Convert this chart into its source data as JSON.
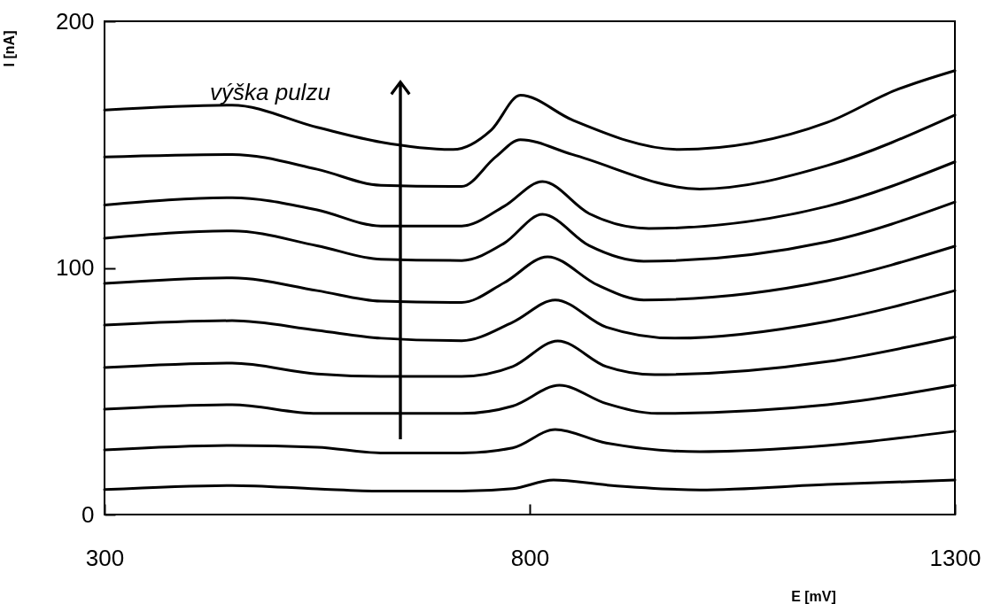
{
  "chart_data": {
    "type": "line",
    "xlabel": "E [mV]",
    "ylabel": "I [nA]",
    "xlim": [
      300,
      1300
    ],
    "xticks": [
      300,
      800,
      1300
    ],
    "ylim": [
      0,
      200
    ],
    "yticks": [
      0,
      100,
      200
    ],
    "grid": false,
    "legend": false,
    "marker": "none",
    "line_style": "solid",
    "annotations": [
      "výška pulzu"
    ],
    "series": [
      {
        "color": "#000000",
        "x": [
          300,
          450,
          550,
          625,
          710,
          755,
          789,
          850,
          976,
          1150,
          1230,
          1300
        ],
        "values": [
          164,
          166,
          157,
          151,
          148,
          156,
          170,
          160,
          148,
          159,
          172,
          180
        ]
      },
      {
        "color": "#000000",
        "x": [
          300,
          450,
          550,
          625,
          720,
          760,
          789,
          850,
          1000,
          1150,
          1300
        ],
        "values": [
          145,
          146,
          140,
          133.5,
          133,
          145,
          152,
          146,
          132,
          141.5,
          162
        ]
      },
      {
        "color": "#000000",
        "x": [
          300,
          450,
          550,
          625,
          720,
          770,
          815,
          870,
          940,
          1150,
          1300
        ],
        "values": [
          125.5,
          128.5,
          123.5,
          117,
          117,
          125,
          135,
          122,
          116,
          125,
          143
        ]
      },
      {
        "color": "#000000",
        "x": [
          300,
          450,
          550,
          625,
          720,
          770,
          815,
          870,
          934,
          1150,
          1300
        ],
        "values": [
          112,
          115,
          109,
          103.5,
          103,
          110,
          121.7,
          109,
          102.7,
          110.6,
          126.7
        ]
      },
      {
        "color": "#000000",
        "x": [
          300,
          450,
          550,
          625,
          720,
          770,
          821,
          880,
          934,
          1150,
          1300
        ],
        "values": [
          93.7,
          96,
          90.8,
          86.5,
          86,
          94,
          104.5,
          93,
          87,
          94.8,
          108.8
        ]
      },
      {
        "color": "#000000",
        "x": [
          300,
          450,
          550,
          625,
          720,
          780,
          830,
          890,
          970,
          1150,
          1300
        ],
        "values": [
          76.8,
          78.6,
          74.7,
          71.5,
          70.5,
          78,
          87,
          76,
          71.5,
          78.3,
          90.8
        ]
      },
      {
        "color": "#000000",
        "x": [
          300,
          450,
          550,
          625,
          720,
          780,
          833,
          890,
          947,
          1150,
          1300
        ],
        "values": [
          59.6,
          61.4,
          57,
          56,
          56,
          60,
          70.4,
          60,
          56.7,
          62,
          72
        ]
      },
      {
        "color": "#000000",
        "x": [
          300,
          450,
          550,
          625,
          720,
          780,
          835,
          890,
          950,
          1150,
          1300
        ],
        "values": [
          42.7,
          44.5,
          41,
          41,
          41,
          44,
          52.4,
          45,
          41,
          44.5,
          52.4
        ]
      },
      {
        "color": "#000000",
        "x": [
          300,
          450,
          550,
          625,
          720,
          780,
          830,
          890,
          1000,
          1150,
          1300
        ],
        "values": [
          26.2,
          28,
          27.3,
          25,
          25,
          27,
          34.5,
          29,
          25.5,
          28,
          33.8
        ]
      },
      {
        "color": "#000000",
        "x": [
          300,
          450,
          550,
          625,
          720,
          780,
          828,
          890,
          1000,
          1150,
          1300
        ],
        "values": [
          10.1,
          11.8,
          10.4,
          9.5,
          9.5,
          10.5,
          14,
          12,
          10,
          12.2,
          14
        ]
      }
    ]
  }
}
